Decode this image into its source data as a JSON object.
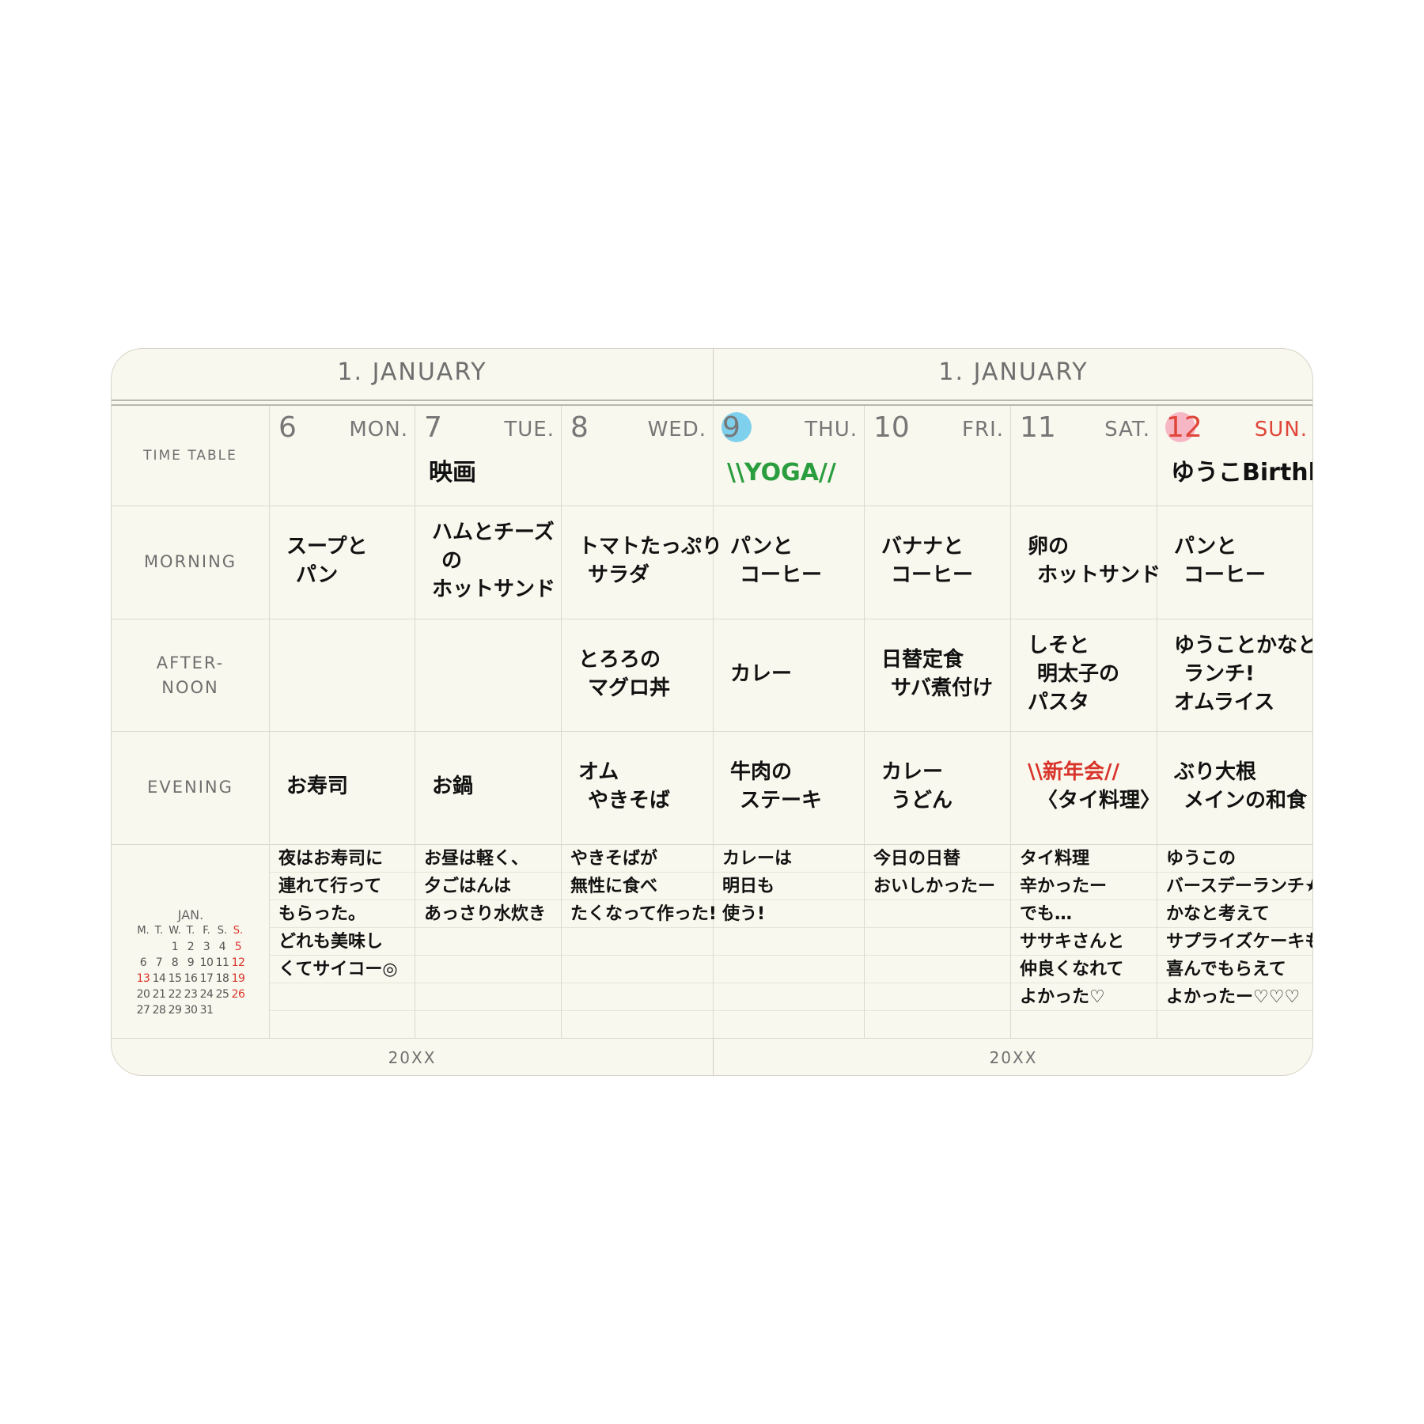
{
  "header": {
    "left_title": "1. JANUARY",
    "right_title": "1. JANUARY",
    "left_footer": "20XX",
    "right_footer": "20XX"
  },
  "row_labels": {
    "time_table": "TIME TABLE",
    "morning": "MORNING",
    "afternoon": [
      "AFTER-",
      "NOON"
    ],
    "evening": "EVENING"
  },
  "mini_calendar": {
    "month": "JAN.",
    "weekdays": [
      "M.",
      "T.",
      "W.",
      "T.",
      "F.",
      "S.",
      "S."
    ],
    "weeks": [
      [
        null,
        null,
        1,
        2,
        3,
        4,
        5
      ],
      [
        6,
        7,
        8,
        9,
        10,
        11,
        12
      ],
      [
        13,
        14,
        15,
        16,
        17,
        18,
        19
      ],
      [
        20,
        21,
        22,
        23,
        24,
        25,
        26
      ],
      [
        27,
        28,
        29,
        30,
        31,
        null,
        null
      ]
    ]
  },
  "days": [
    {
      "number": 6,
      "weekday": "MON.",
      "event": null,
      "morning": [
        "スープと",
        "パン"
      ],
      "afternoon": [],
      "evening": [
        "お寿司"
      ],
      "notes": [
        "夜はお寿司に",
        "連れて行って",
        "もらった。",
        "どれも美味し",
        "くてサイコー◎"
      ]
    },
    {
      "number": 7,
      "weekday": "TUE.",
      "event": {
        "text": "映画",
        "color": "#111111"
      },
      "morning": [
        "ハムとチーズ",
        "の",
        "ホットサンド"
      ],
      "afternoon": [],
      "evening": [
        "お鍋"
      ],
      "notes": [
        "お昼は軽く、",
        "夕ごはんは",
        "あっさり水炊き"
      ]
    },
    {
      "number": 8,
      "weekday": "WED.",
      "event": null,
      "morning": [
        "トマトたっぷり",
        "サラダ"
      ],
      "afternoon": [
        "とろろの",
        "マグロ丼"
      ],
      "evening": [
        "オム",
        "やきそば"
      ],
      "notes": [
        "やきそばが",
        "無性に食べ",
        "たくなって作った!"
      ]
    },
    {
      "number": 9,
      "weekday": "THU.",
      "highlight": "#7fd0ec",
      "event": {
        "text": "\\\\YOGA//",
        "color": "#2a9d3e"
      },
      "morning": [
        "パンと",
        "コーヒー"
      ],
      "afternoon": [
        "カレー"
      ],
      "evening": [
        "牛肉の",
        "ステーキ"
      ],
      "notes": [
        "カレーは",
        "明日も",
        "使う!"
      ]
    },
    {
      "number": 10,
      "weekday": "FRI.",
      "event": null,
      "morning": [
        "バナナと",
        "コーヒー"
      ],
      "afternoon": [
        "日替定食",
        "サバ煮付け"
      ],
      "evening": [
        "カレー",
        "うどん"
      ],
      "notes": [
        "今日の日替",
        "おいしかったー"
      ]
    },
    {
      "number": 11,
      "weekday": "SAT.",
      "event": null,
      "morning": [
        "卵の",
        "ホットサンド"
      ],
      "afternoon": [
        "しそと",
        "明太子の",
        "パスタ"
      ],
      "evening": [
        {
          "text": "\\\\新年会//",
          "color": "#d9342b"
        },
        "〈タイ料理〉"
      ],
      "notes": [
        "タイ料理",
        "辛かったー",
        "でも…",
        "ササキさんと",
        "仲良くなれて",
        "よかった♡"
      ]
    },
    {
      "number": 12,
      "weekday": "SUN.",
      "highlight": "#f7b6c4",
      "color": "#e0463a",
      "event": {
        "text": "ゆうこBirthbay",
        "color": "#111111"
      },
      "morning": [
        "パンと",
        "コーヒー"
      ],
      "afternoon": [
        "ゆうことかなと",
        "ランチ!",
        "オムライス"
      ],
      "evening": [
        "ぶり大根",
        "メインの和食"
      ],
      "notes": [
        "ゆうこの",
        "バースデーランチ★",
        "かなと考えて",
        "サプライズケーキも!",
        "喜んでもらえて",
        "よかったー♡♡♡"
      ]
    }
  ]
}
